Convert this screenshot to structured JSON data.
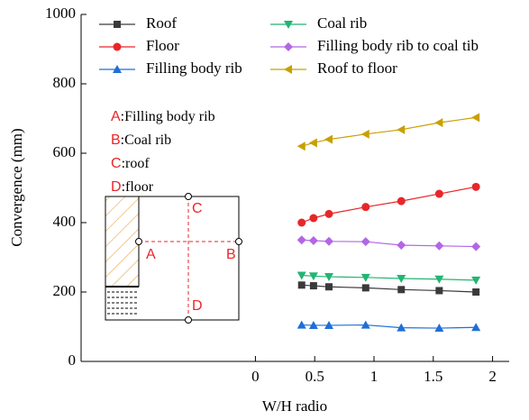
{
  "chart_data": {
    "type": "line",
    "x_label": "W/H radio",
    "y_label": "Convergence (mm)",
    "x": [
      0.39,
      0.49,
      0.62,
      0.93,
      1.23,
      1.55,
      1.86
    ],
    "series": [
      {
        "name": "Roof",
        "color": "#3a3a3a",
        "marker": "square",
        "values": [
          220,
          218,
          215,
          212,
          207,
          204,
          200
        ]
      },
      {
        "name": "Floor",
        "color": "#e8262a",
        "marker": "circle",
        "values": [
          400,
          413,
          425,
          445,
          462,
          483,
          503
        ]
      },
      {
        "name": "Filling body rib",
        "color": "#1f6fd6",
        "marker": "triangle-up",
        "values": [
          105,
          104,
          104,
          105,
          97,
          96,
          98
        ]
      },
      {
        "name": "Coal rib",
        "color": "#22b573",
        "marker": "triangle-down",
        "values": [
          248,
          246,
          244,
          242,
          239,
          237,
          234
        ]
      },
      {
        "name": "Filling body rib to coal tib",
        "color": "#b266e6",
        "marker": "diamond",
        "values": [
          350,
          348,
          346,
          345,
          335,
          333,
          331
        ]
      },
      {
        "name": "Roof  to floor",
        "color": "#c8a000",
        "marker": "triangle-left",
        "values": [
          620,
          630,
          640,
          655,
          668,
          688,
          703
        ]
      }
    ],
    "xlim": [
      -1.47,
      2.14
    ],
    "xticks": [
      0,
      0.5,
      1,
      1.5,
      2
    ],
    "ylim": [
      0,
      1000
    ],
    "yticks": [
      0,
      200,
      400,
      600,
      800,
      1000
    ],
    "annotations": [
      {
        "letter": "A",
        "text": ":Filling body rib"
      },
      {
        "letter": "B",
        "text": ":Coal rib"
      },
      {
        "letter": "C",
        "text": ":roof"
      },
      {
        "letter": "D",
        "text": ":floor"
      }
    ]
  }
}
